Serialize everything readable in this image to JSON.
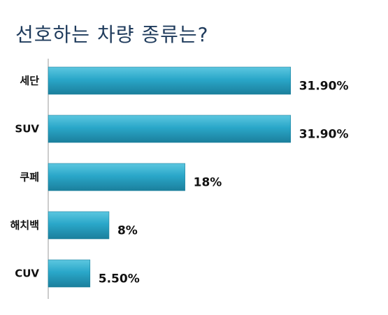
{
  "chart_data": {
    "type": "bar",
    "orientation": "horizontal",
    "title": "선호하는 차량 종류는?",
    "categories": [
      "세단",
      "SUV",
      "쿠페",
      "해치백",
      "CUV"
    ],
    "values": [
      31.9,
      31.9,
      18,
      8,
      5.5
    ],
    "value_labels": [
      "31.90%",
      "31.90%",
      "18%",
      "8%",
      "5.50%"
    ],
    "xlim": [
      0,
      33.4
    ],
    "grid": false,
    "legend": "none",
    "bar_color": "#2aa7c9",
    "bar_color_light": "#5cc7e0",
    "bar_color_dark": "#1b7f9c"
  }
}
